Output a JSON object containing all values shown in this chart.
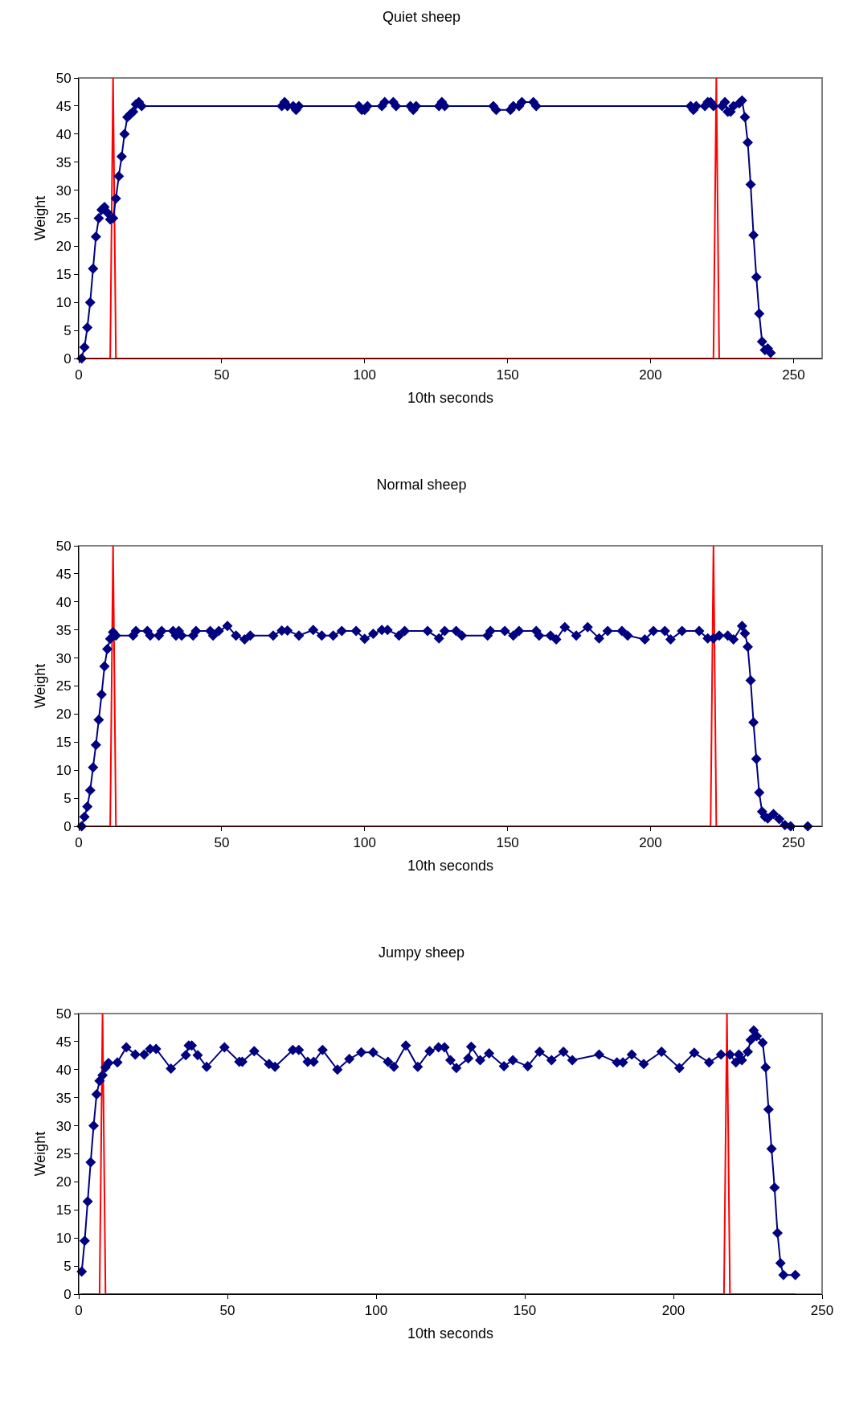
{
  "chart_data": [
    {
      "type": "line",
      "title": "Quiet sheep",
      "xlabel": "10th seconds",
      "ylabel": "Weight",
      "xlim": [
        0,
        260
      ],
      "xticks": [
        0,
        50,
        100,
        150,
        200,
        250
      ],
      "ylim": [
        0,
        50
      ],
      "yticks": [
        0,
        5,
        10,
        15,
        20,
        25,
        30,
        35,
        40,
        45,
        50
      ],
      "marker": "diamond",
      "line_style": "solid",
      "series": [
        {
          "color": "#ff0000",
          "marker": "none",
          "x": [
            1,
            11,
            12,
            13,
            222,
            223,
            224,
            244
          ],
          "values": [
            0,
            0,
            50,
            0,
            0,
            50,
            0,
            0
          ]
        },
        {
          "color": "#000080",
          "x": [
            1,
            2,
            3,
            4,
            5,
            6,
            7,
            8,
            9,
            10,
            11,
            12,
            13,
            14,
            15,
            16,
            17,
            18,
            19,
            20,
            21,
            22,
            71,
            72,
            73,
            75,
            76,
            77,
            98,
            99,
            100,
            101,
            106,
            107,
            110,
            111,
            116,
            117,
            118,
            126,
            127,
            128,
            145,
            146,
            151,
            152,
            154,
            155,
            159,
            160,
            214,
            215,
            216,
            219,
            220,
            221,
            222,
            225,
            226,
            227,
            228,
            229,
            231,
            232,
            233,
            234,
            235,
            236,
            237,
            238,
            239,
            240,
            241,
            242
          ],
          "values": [
            0,
            2,
            5.5,
            10,
            16,
            21.7,
            25,
            26.5,
            27,
            26,
            24.8,
            25,
            28.5,
            32.5,
            36,
            40,
            43,
            43.5,
            44,
            45.3,
            45.7,
            45,
            45,
            45.7,
            45,
            45,
            44.3,
            45,
            45,
            44.3,
            44.3,
            45,
            45,
            45.7,
            45.7,
            45,
            45,
            44.3,
            45,
            45,
            45.7,
            45,
            45,
            44.3,
            44.3,
            45,
            45,
            45.7,
            45.7,
            45,
            45,
            44.3,
            45,
            45,
            45.7,
            45.7,
            45,
            45,
            45.7,
            44,
            44,
            45,
            45.5,
            46,
            43,
            38.5,
            31,
            22,
            14.5,
            8,
            3,
            1.5,
            1.8,
            1
          ]
        }
      ]
    },
    {
      "type": "line",
      "title": "Normal sheep",
      "xlabel": "10th seconds",
      "ylabel": "Weight",
      "xlim": [
        0,
        260
      ],
      "xticks": [
        0,
        50,
        100,
        150,
        200,
        250
      ],
      "ylim": [
        0,
        50
      ],
      "yticks": [
        0,
        5,
        10,
        15,
        20,
        25,
        30,
        35,
        40,
        45,
        50
      ],
      "marker": "diamond",
      "line_style": "solid",
      "series": [
        {
          "color": "#ff0000",
          "marker": "none",
          "x": [
            1,
            11,
            12,
            13,
            221,
            222,
            223,
            253
          ],
          "values": [
            0,
            0,
            50,
            0,
            0,
            50,
            0,
            0
          ]
        },
        {
          "color": "#000080",
          "x": [
            1,
            2,
            3,
            4,
            5,
            6,
            7,
            8,
            9,
            10,
            11,
            12,
            13,
            19,
            20,
            24,
            25,
            28,
            29,
            33,
            34,
            35,
            36,
            40,
            41,
            46,
            47,
            49,
            52,
            55,
            58,
            60,
            68,
            71,
            73,
            77,
            82,
            85,
            89,
            92,
            97,
            100,
            103,
            106,
            108,
            112,
            114,
            122,
            126,
            128,
            132,
            134,
            143,
            144,
            149,
            152,
            154,
            160,
            161,
            165,
            167,
            170,
            174,
            178,
            182,
            185,
            190,
            192,
            198,
            201,
            205,
            207,
            211,
            217,
            220,
            222,
            224,
            227,
            229,
            232,
            233,
            234,
            235,
            236,
            237,
            238,
            239,
            240,
            241,
            243,
            245,
            247,
            249,
            255
          ],
          "values": [
            0,
            1.7,
            3.5,
            6.4,
            10.5,
            14.5,
            19,
            23.5,
            28.5,
            31.6,
            33.4,
            34.6,
            34,
            34,
            34.8,
            34.8,
            34,
            34,
            34.8,
            34.8,
            34,
            34.8,
            34,
            34,
            34.8,
            34.8,
            34,
            34.8,
            35.7,
            34,
            33.3,
            34,
            34,
            34.9,
            34.9,
            34,
            35,
            34,
            34,
            34.8,
            34.8,
            33.4,
            34.3,
            35,
            35,
            34,
            34.8,
            34.8,
            33.5,
            34.8,
            34.8,
            34,
            34,
            34.8,
            34.8,
            34,
            34.8,
            34.8,
            34,
            34,
            33.3,
            35.5,
            34,
            35.5,
            33.5,
            34.8,
            34.8,
            34,
            33.3,
            34.8,
            34.8,
            33.3,
            34.8,
            34.8,
            33.5,
            33.5,
            34,
            34,
            33.3,
            35.7,
            34.4,
            32,
            26,
            18.5,
            12,
            6,
            2.6,
            1.7,
            1.4,
            2.2,
            1.3,
            0.2,
            0,
            0
          ]
        }
      ]
    },
    {
      "type": "line",
      "title": "Jumpy sheep",
      "xlabel": "10th seconds",
      "ylabel": "Weight",
      "xlim": [
        0,
        250
      ],
      "xticks": [
        0,
        50,
        100,
        150,
        200,
        250
      ],
      "ylim": [
        0,
        50
      ],
      "yticks": [
        0,
        5,
        10,
        15,
        20,
        25,
        30,
        35,
        40,
        45,
        50
      ],
      "marker": "diamond",
      "line_style": "solid",
      "series": [
        {
          "color": "#ff0000",
          "marker": "none",
          "x": [
            1,
            7,
            8,
            9,
            217,
            218,
            219,
            241
          ],
          "values": [
            0,
            0,
            50,
            0,
            0,
            50,
            0,
            0
          ]
        },
        {
          "color": "#000080",
          "x": [
            1,
            2,
            3,
            4,
            5,
            6,
            7,
            8,
            9,
            10,
            13,
            16,
            19,
            22,
            24,
            26,
            31,
            36,
            37,
            38,
            40,
            43,
            49,
            54,
            55,
            59,
            64,
            66,
            72,
            74,
            77,
            79,
            82,
            87,
            91,
            95,
            99,
            104,
            106,
            110,
            114,
            118,
            121,
            123,
            125,
            127,
            131,
            132,
            135,
            138,
            143,
            146,
            151,
            155,
            159,
            163,
            166,
            175,
            181,
            183,
            186,
            190,
            196,
            202,
            207,
            212,
            216,
            219,
            221,
            222,
            223,
            225,
            226,
            227,
            228,
            230,
            231,
            232,
            233,
            234,
            235,
            236,
            237,
            241
          ],
          "values": [
            4,
            9.5,
            16.5,
            23.5,
            30,
            35.6,
            38,
            39,
            40.4,
            41.2,
            41.3,
            44,
            42.7,
            42.7,
            43.7,
            43.7,
            40.2,
            42.6,
            44.3,
            44.3,
            42.6,
            40.5,
            44,
            41.4,
            41.4,
            43.3,
            41,
            40.5,
            43.5,
            43.5,
            41.4,
            41.4,
            43.5,
            40,
            41.9,
            43.1,
            43.1,
            41.4,
            40.5,
            44.3,
            40.5,
            43.3,
            44,
            44,
            41.7,
            40.3,
            42,
            44.1,
            41.7,
            42.9,
            40.6,
            41.7,
            40.6,
            43.2,
            41.7,
            43.2,
            41.7,
            42.7,
            41.3,
            41.3,
            42.7,
            41,
            43.2,
            40.3,
            43,
            41.3,
            42.7,
            42.7,
            41.3,
            42.7,
            41.7,
            43.2,
            45.3,
            47,
            46,
            44.8,
            40.4,
            32.9,
            25.9,
            19,
            10.9,
            5.5,
            3.4,
            3.4
          ]
        }
      ]
    }
  ]
}
